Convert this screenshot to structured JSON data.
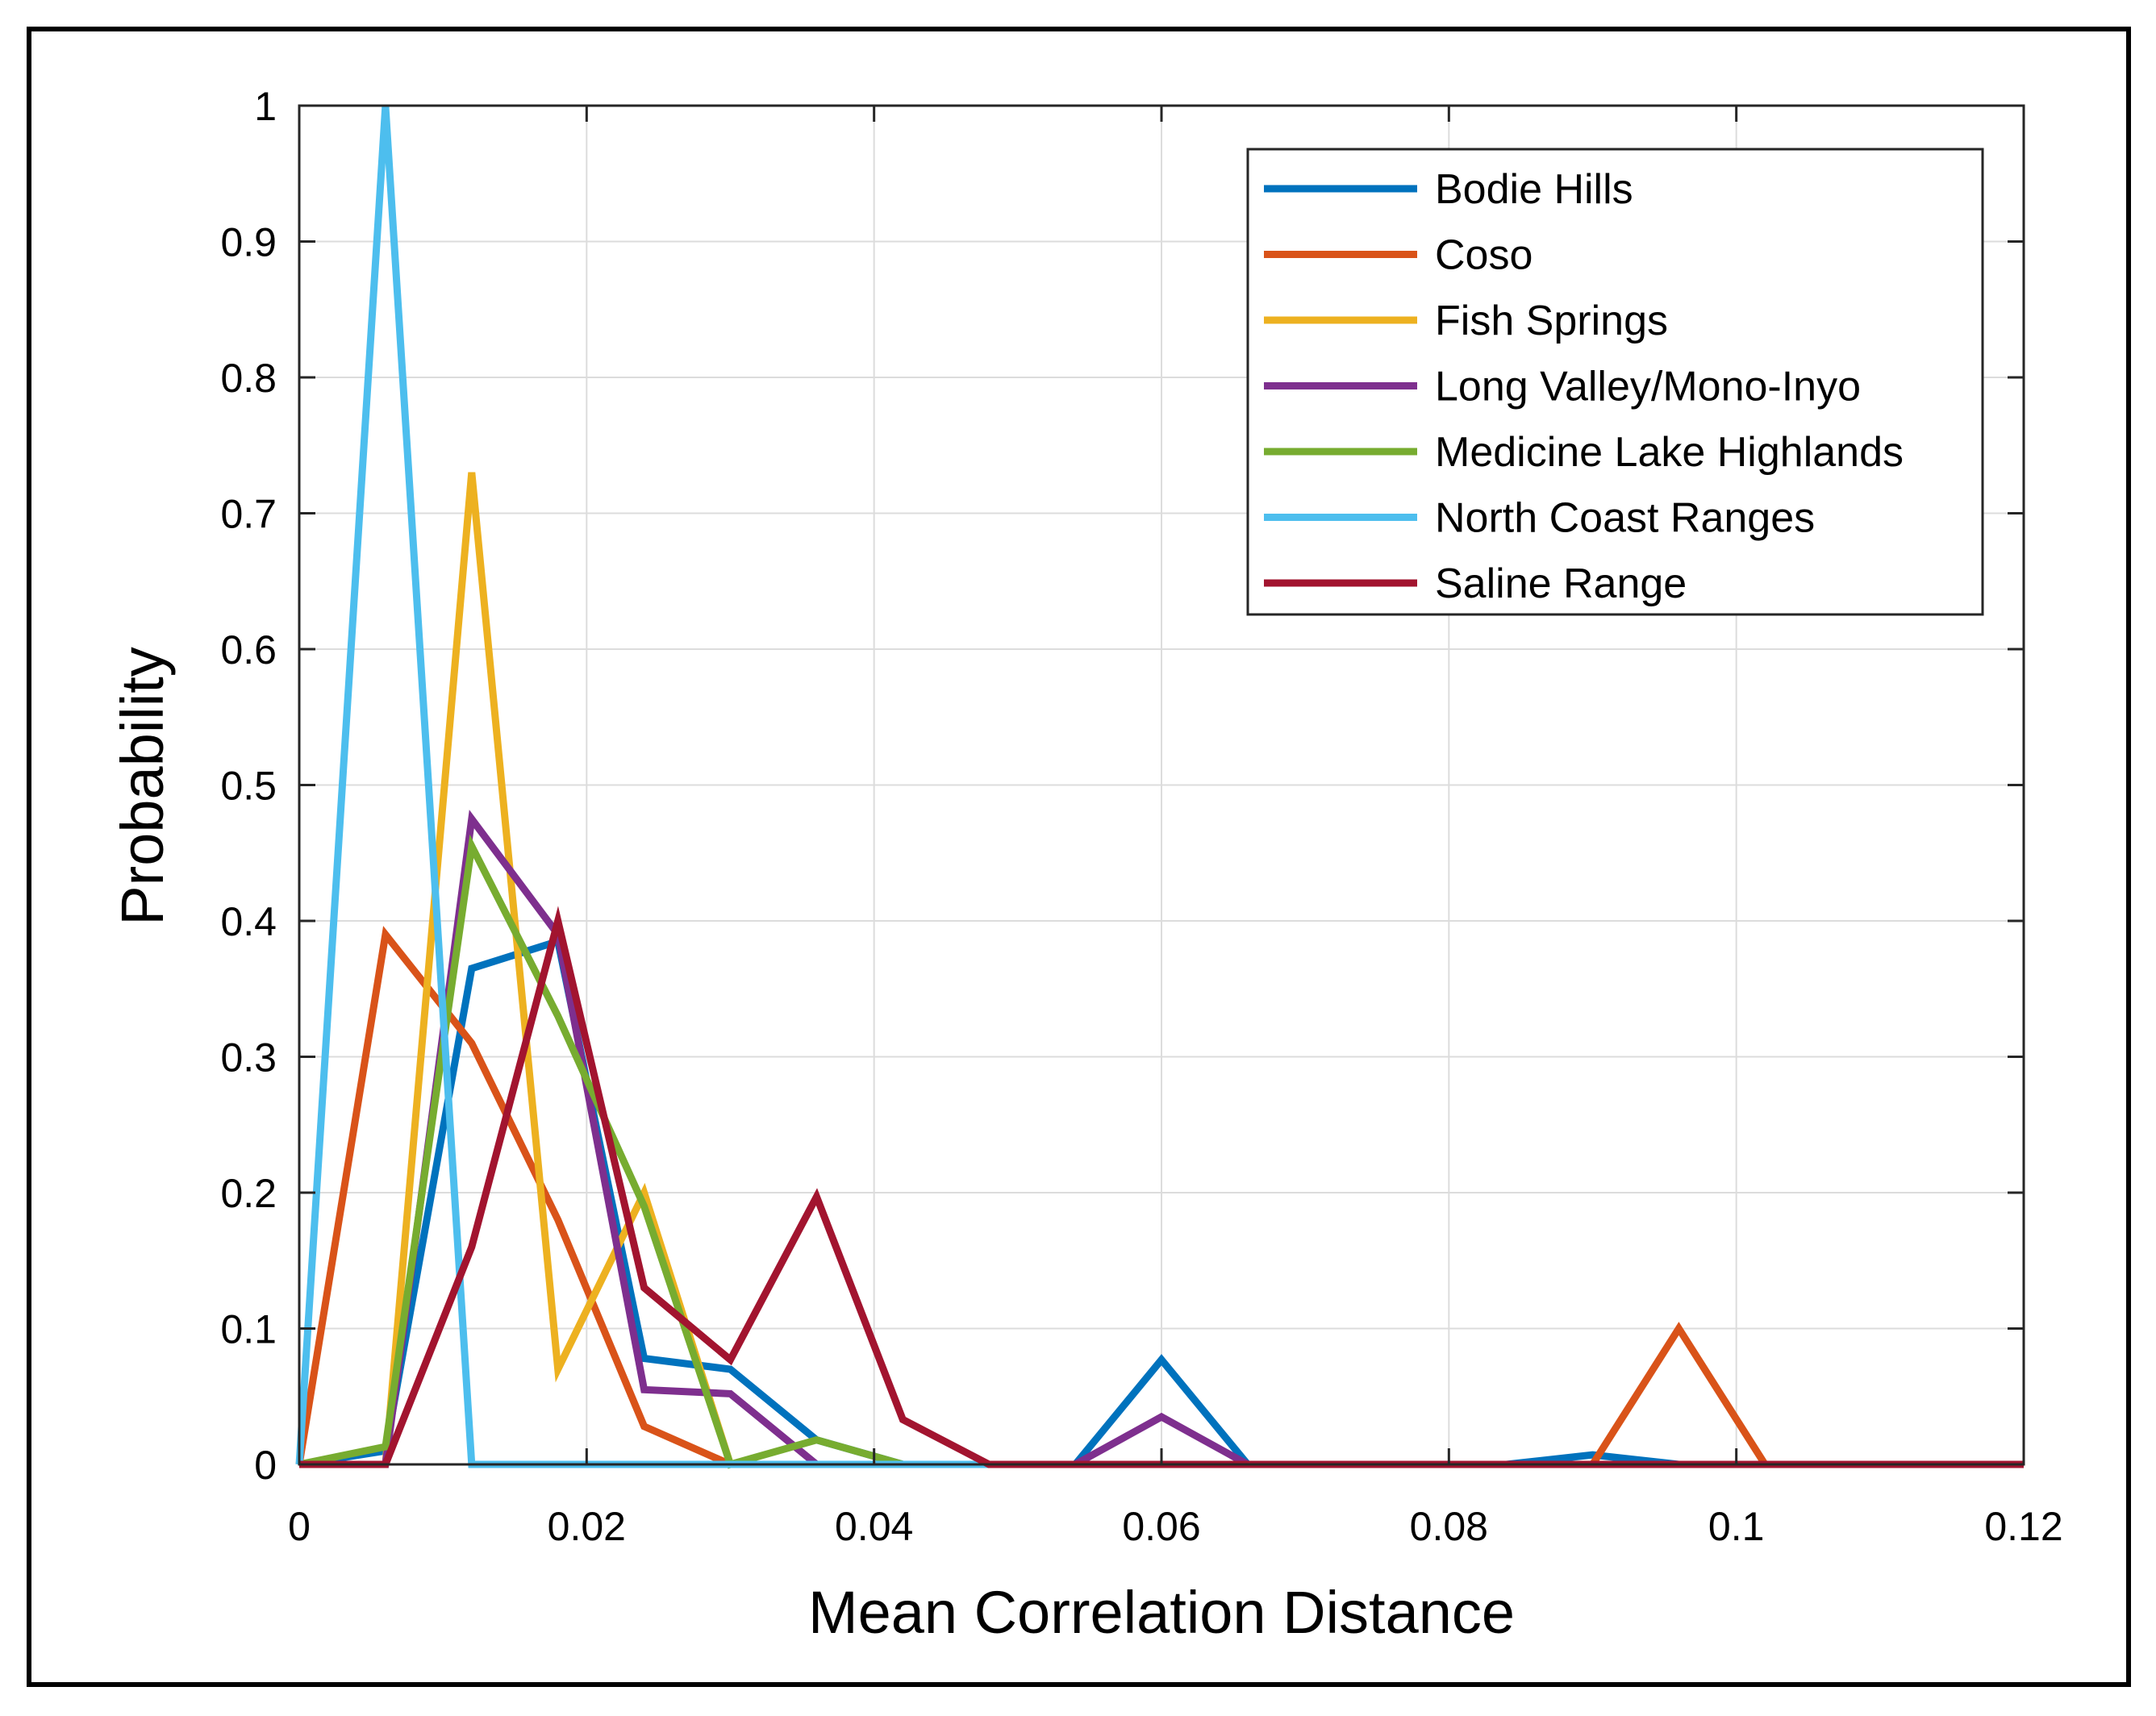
{
  "chart_data": {
    "type": "line",
    "title": "",
    "xlabel": "Mean Correlation Distance",
    "ylabel": "Probability",
    "xlim": [
      0,
      0.12
    ],
    "ylim": [
      0,
      1
    ],
    "x_ticks": [
      0,
      0.02,
      0.04,
      0.06,
      0.08,
      0.1,
      0.12
    ],
    "x_tick_labels": [
      "0",
      "0.02",
      "0.04",
      "0.06",
      "0.08",
      "0.1",
      "0.12"
    ],
    "y_ticks": [
      0,
      0.1,
      0.2,
      0.3,
      0.4,
      0.5,
      0.6,
      0.7,
      0.8,
      0.9,
      1
    ],
    "y_tick_labels": [
      "0",
      "0.1",
      "0.2",
      "0.3",
      "0.4",
      "0.5",
      "0.6",
      "0.7",
      "0.8",
      "0.9",
      "1"
    ],
    "grid": true,
    "legend_position": "top-right",
    "x": [
      0,
      0.006,
      0.012,
      0.018,
      0.024,
      0.03,
      0.036,
      0.042,
      0.048,
      0.054,
      0.06,
      0.066,
      0.072,
      0.078,
      0.084,
      0.09,
      0.096,
      0.102,
      0.108,
      0.114,
      0.12
    ],
    "series": [
      {
        "name": "Bodie Hills",
        "color": "#0072BD",
        "values": [
          0,
          0.01,
          0.365,
          0.385,
          0.078,
          0.07,
          0.018,
          0,
          0,
          0,
          0.077,
          0,
          0,
          0,
          0,
          0.007,
          0,
          0,
          0,
          0,
          0
        ]
      },
      {
        "name": "Coso",
        "color": "#D95319",
        "values": [
          0,
          0.39,
          0.31,
          0.18,
          0.028,
          0,
          0,
          0,
          0,
          0,
          0,
          0,
          0,
          0,
          0,
          0,
          0.1,
          0,
          0,
          0,
          0
        ]
      },
      {
        "name": "Fish Springs",
        "color": "#EDB120",
        "values": [
          0,
          0,
          0.73,
          0.07,
          0.2,
          0,
          0,
          0,
          0,
          0,
          0,
          0,
          0,
          0,
          0,
          0,
          0,
          0,
          0,
          0,
          0
        ]
      },
      {
        "name": "Long Valley/Mono-Inyo",
        "color": "#7E2F8E",
        "values": [
          0,
          0,
          0.475,
          0.39,
          0.055,
          0.052,
          0,
          0,
          0,
          0,
          0.035,
          0,
          0,
          0,
          0,
          0,
          0,
          0,
          0,
          0,
          0
        ]
      },
      {
        "name": "Medicine Lake Highlands",
        "color": "#77AC30",
        "values": [
          0,
          0.013,
          0.455,
          0.33,
          0.19,
          0,
          0.018,
          0,
          0,
          0,
          0,
          0,
          0,
          0,
          0,
          0,
          0,
          0,
          0,
          0,
          0
        ]
      },
      {
        "name": "North Coast Ranges",
        "color": "#4DBEEE",
        "values": [
          0,
          1,
          0,
          0,
          0,
          0,
          0,
          0,
          0,
          0,
          0,
          0,
          0,
          0,
          0,
          0,
          0,
          0,
          0,
          0,
          0
        ]
      },
      {
        "name": "Saline Range",
        "color": "#A2142F",
        "values": [
          0,
          0,
          0.16,
          0.4,
          0.13,
          0.077,
          0.197,
          0.033,
          0,
          0,
          0,
          0,
          0,
          0,
          0,
          0,
          0,
          0,
          0,
          0,
          0
        ]
      }
    ]
  }
}
